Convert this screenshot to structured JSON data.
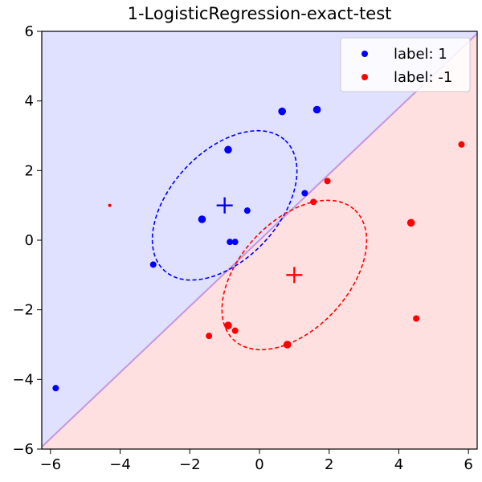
{
  "chart_data": {
    "type": "scatter",
    "title": "1-LogisticRegression-exact-test",
    "xlabel": "",
    "ylabel": "",
    "xlim": [
      -6.25,
      6.25
    ],
    "ylim": [
      -6,
      6
    ],
    "xticks": [
      -6,
      -4,
      -2,
      0,
      2,
      4,
      6
    ],
    "yticks": [
      -6,
      -4,
      -2,
      0,
      2,
      4,
      6
    ],
    "xtick_labels": [
      "−6",
      "−4",
      "−2",
      "0",
      "2",
      "4",
      "6"
    ],
    "ytick_labels": [
      "−6",
      "−4",
      "−2",
      "0",
      "2",
      "4",
      "6"
    ],
    "grid": false,
    "legend_position": "top-right",
    "decision_boundary": {
      "slope": 0.95,
      "intercept": 0.0,
      "line_color": "#c896d8",
      "region_above_color": "#e0e0ff",
      "region_below_color": "#ffe0e0"
    },
    "series": [
      {
        "name": "label: 1",
        "color": "#0000ff",
        "mean": [
          -1,
          1
        ],
        "ellipse": {
          "center": [
            -1,
            1
          ],
          "semi_major": 2.55,
          "semi_minor": 1.55,
          "angle_deg": 47
        },
        "points": [
          {
            "x": 0.65,
            "y": 3.7,
            "big": true
          },
          {
            "x": 1.65,
            "y": 3.75,
            "big": true
          },
          {
            "x": -0.9,
            "y": 2.6,
            "big": true
          },
          {
            "x": 1.3,
            "y": 1.35,
            "big": false
          },
          {
            "x": -1.65,
            "y": 0.6,
            "big": true
          },
          {
            "x": -0.35,
            "y": 0.85,
            "big": false
          },
          {
            "x": -0.85,
            "y": -0.05,
            "big": false
          },
          {
            "x": -0.7,
            "y": -0.05,
            "big": false
          },
          {
            "x": -3.05,
            "y": -0.7,
            "big": false
          },
          {
            "x": -5.85,
            "y": -4.25,
            "big": false
          }
        ]
      },
      {
        "name": "label: -1",
        "color": "#ff0000",
        "mean": [
          1,
          -1
        ],
        "ellipse": {
          "center": [
            1,
            -1
          ],
          "semi_major": 2.55,
          "semi_minor": 1.55,
          "angle_deg": 47
        },
        "points": [
          {
            "x": 5.8,
            "y": 2.75,
            "big": false
          },
          {
            "x": 1.95,
            "y": 1.7,
            "big": false
          },
          {
            "x": 1.55,
            "y": 1.1,
            "big": false
          },
          {
            "x": 4.35,
            "y": 0.5,
            "big": true
          },
          {
            "x": -4.3,
            "y": 1.0,
            "big": false,
            "tiny": true
          },
          {
            "x": -0.9,
            "y": -2.45,
            "big": true
          },
          {
            "x": -0.7,
            "y": -2.6,
            "big": false
          },
          {
            "x": -1.45,
            "y": -2.75,
            "big": false
          },
          {
            "x": 0.8,
            "y": -3.0,
            "big": true
          },
          {
            "x": 4.5,
            "y": -2.25,
            "big": false
          }
        ]
      }
    ]
  }
}
